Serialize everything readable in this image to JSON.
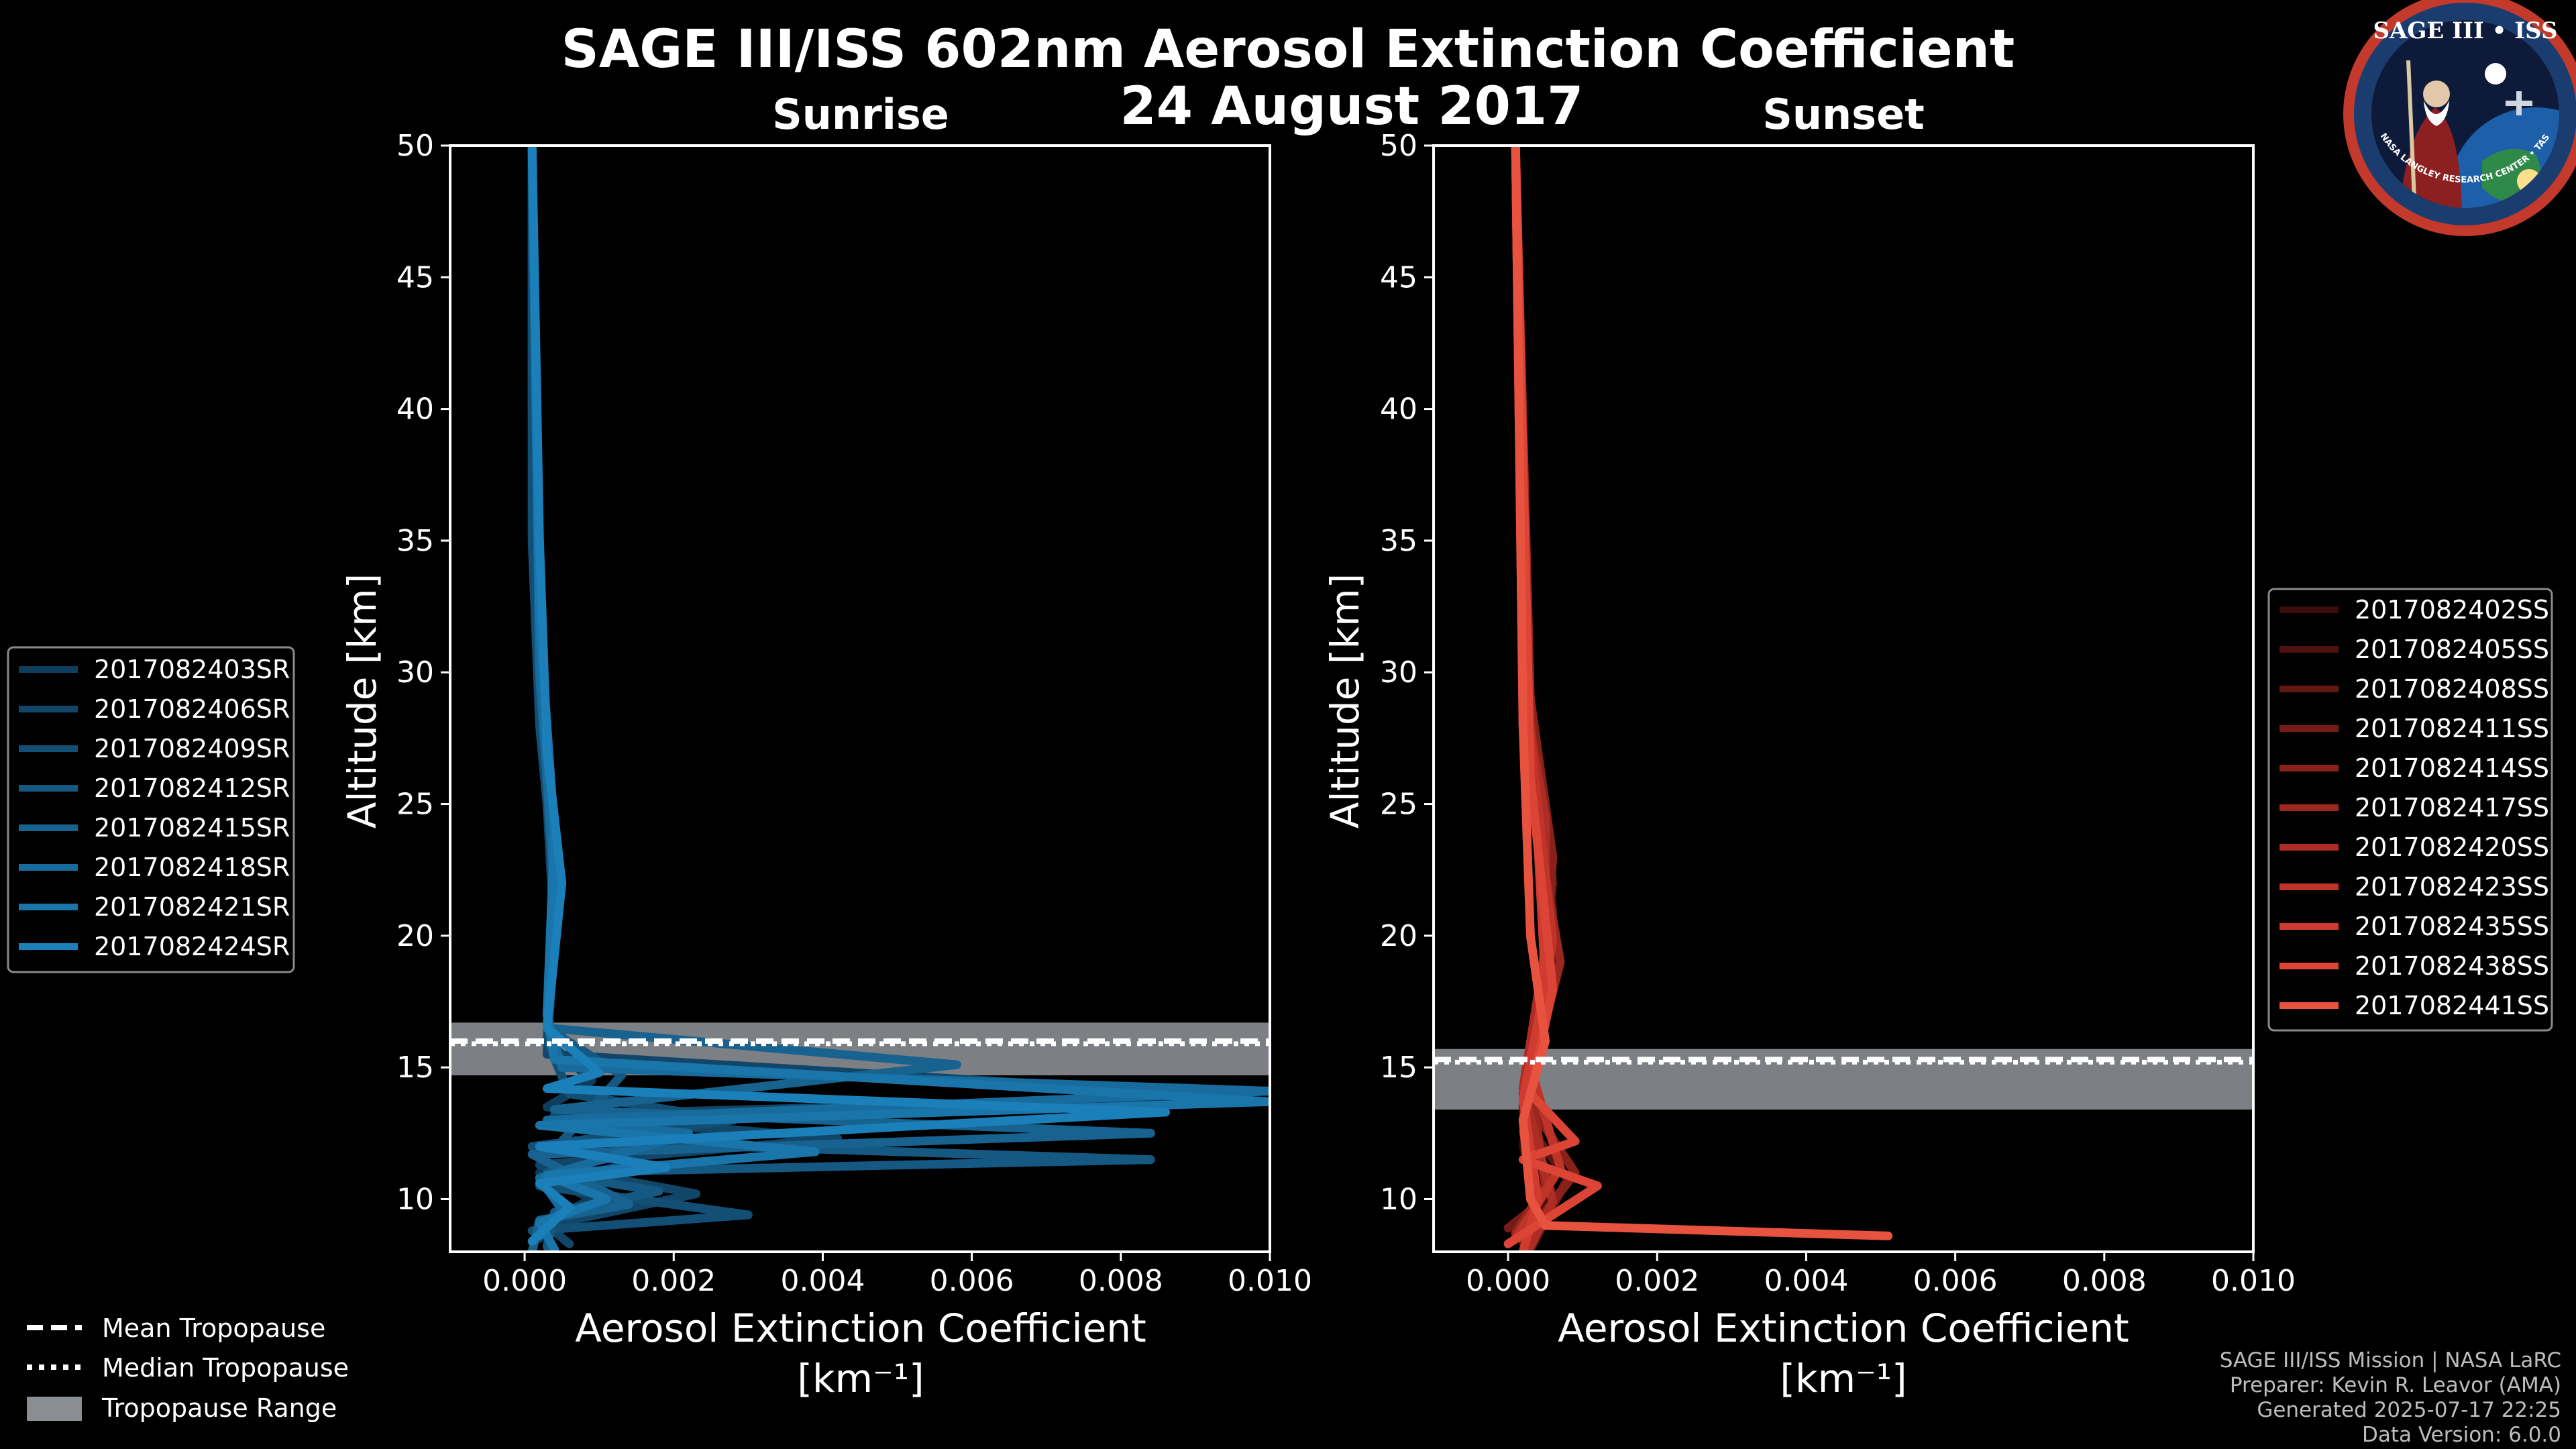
{
  "header": {
    "title_line1": "SAGE III/ISS 602nm Aerosol Extinction Coefficient",
    "title_line2": "24 August 2017"
  },
  "logo": {
    "text": "SAGE III • ISS",
    "ring_text": "BALL • NASA LANGLEY RESEARCH CENTER • TAS-I • ESA"
  },
  "credits": {
    "line1": "SAGE III/ISS Mission | NASA LaRC",
    "line2": "Preparer: Kevin R. Leavor (AMA)",
    "line3": "Generated 2025-07-17 22:25",
    "line4": "Data Version: 6.0.0"
  },
  "tropopause_legend": {
    "mean": "Mean Tropopause",
    "median": "Median Tropopause",
    "range": "Tropopause Range"
  },
  "colors": {
    "background": "#000000",
    "sunrise": "#1a7fc1",
    "sunset": "#e5574a",
    "tropopause_band": "#8a8d91"
  },
  "chart_data": [
    {
      "type": "line",
      "title": "Sunrise",
      "xlabel": "Aerosol Extinction Coefficient",
      "xlabel_units": "[km⁻¹]",
      "ylabel": "Altitude [km]",
      "xlim": [
        -0.001,
        0.01
      ],
      "ylim": [
        8,
        50
      ],
      "xticks": [
        0.0,
        0.002,
        0.004,
        0.006,
        0.008,
        0.01
      ],
      "xtick_labels": [
        "0.000",
        "0.002",
        "0.004",
        "0.006",
        "0.008",
        "0.010"
      ],
      "yticks": [
        10,
        15,
        20,
        25,
        30,
        35,
        40,
        45,
        50
      ],
      "tropopause": {
        "mean": 16.0,
        "median": 15.9,
        "range": [
          14.7,
          16.7
        ]
      },
      "legend": [
        "2017082403SR",
        "2017082406SR",
        "2017082409SR",
        "2017082412SR",
        "2017082415SR",
        "2017082418SR",
        "2017082421SR",
        "2017082424SR"
      ],
      "series": [
        {
          "name": "2017082403SR",
          "color": "#0e3d5e",
          "x": [
            0.0002,
            0.0004,
            0.0009,
            0.0002,
            0.0028,
            0.0003,
            0.0009,
            0.0003,
            0.0004,
            0.0003,
            0.0002,
            0.0002,
            0.0001,
            0.0001
          ],
          "y": [
            8.5,
            9.3,
            10,
            11,
            12.5,
            13.5,
            14.5,
            16,
            20,
            25,
            30,
            35,
            40,
            50
          ]
        },
        {
          "name": "2017082406SR",
          "color": "#114669",
          "x": [
            0.0006,
            0.0003,
            0.0023,
            0.0002,
            0.0042,
            0.0004,
            0.0097,
            0.0003,
            0.0004,
            0.0003,
            0.0002,
            0.0001,
            0.0001
          ],
          "y": [
            8.3,
            9.0,
            10.2,
            11.3,
            12.3,
            13.2,
            13.9,
            15.5,
            20,
            25,
            30,
            40,
            50
          ]
        },
        {
          "name": "2017082409SR",
          "color": "#134f75",
          "x": [
            0.0001,
            0.003,
            0.0002,
            0.0015,
            0.0001,
            0.0028,
            0.0006,
            0.0003,
            0.0004,
            0.0002,
            0.0001,
            0.0001
          ],
          "y": [
            8.8,
            9.4,
            10.5,
            11.4,
            12.0,
            13.0,
            14.0,
            16,
            22,
            28,
            35,
            50
          ]
        },
        {
          "name": "2017082412SR",
          "color": "#155882",
          "x": [
            0.0003,
            0.0004,
            0.0018,
            0.0003,
            0.0084,
            0.0005,
            0.0013,
            0.0003,
            0.0004,
            0.0003,
            0.0002,
            0.0001
          ],
          "y": [
            8.2,
            9.5,
            10.3,
            11.0,
            11.5,
            12.2,
            14.7,
            16.5,
            23,
            27,
            33,
            50
          ]
        },
        {
          "name": "2017082415SR",
          "color": "#17628f",
          "x": [
            0.0001,
            0.0002,
            0.0014,
            0.0001,
            0.0084,
            0.0004,
            0.0058,
            0.0003,
            0.0004,
            0.0003,
            0.0002,
            0.0001
          ],
          "y": [
            8.0,
            9.2,
            9.8,
            11.7,
            12.5,
            13.4,
            15.1,
            16.5,
            21,
            26,
            31,
            50
          ]
        },
        {
          "name": "2017082418SR",
          "color": "#186c9d",
          "x": [
            0.0002,
            0.0005,
            0.0002,
            0.0022,
            0.0003,
            0.01,
            0.0005,
            0.0003,
            0.0004,
            0.0002,
            0.0001
          ],
          "y": [
            8.6,
            9.6,
            10.8,
            12.5,
            13.0,
            14.1,
            15.0,
            17,
            22,
            30,
            50
          ]
        },
        {
          "name": "2017082421SR",
          "color": "#1a75ab",
          "x": [
            0.0004,
            0.0002,
            0.0011,
            0.0003,
            0.0039,
            0.0002,
            0.01,
            0.0004,
            0.0003,
            0.0004,
            0.0002,
            0.0001
          ],
          "y": [
            8.1,
            9.1,
            10.0,
            10.9,
            11.8,
            12.8,
            13.7,
            15.3,
            17,
            24,
            32,
            50
          ]
        },
        {
          "name": "2017082424SR",
          "color": "#1b7fba",
          "x": [
            0.0001,
            0.0006,
            0.0002,
            0.0019,
            0.0002,
            0.0086,
            0.0003,
            0.001,
            0.0003,
            0.0005,
            0.0003,
            0.0002,
            0.0001
          ],
          "y": [
            8.4,
            9.7,
            10.6,
            11.2,
            12.0,
            13.3,
            14.2,
            14.8,
            16.5,
            22,
            27,
            35,
            50
          ]
        }
      ]
    },
    {
      "type": "line",
      "title": "Sunset",
      "xlabel": "Aerosol Extinction Coefficient",
      "xlabel_units": "[km⁻¹]",
      "ylabel": "Altitude [km]",
      "xlim": [
        -0.001,
        0.01
      ],
      "ylim": [
        8,
        50
      ],
      "xticks": [
        0.0,
        0.002,
        0.004,
        0.006,
        0.008,
        0.01
      ],
      "xtick_labels": [
        "0.000",
        "0.002",
        "0.004",
        "0.006",
        "0.008",
        "0.010"
      ],
      "yticks": [
        10,
        15,
        20,
        25,
        30,
        35,
        40,
        45,
        50
      ],
      "tropopause": {
        "mean": 15.3,
        "median": 15.2,
        "range": [
          13.4,
          15.7
        ]
      },
      "legend": [
        "2017082402SS",
        "2017082405SS",
        "2017082408SS",
        "2017082411SS",
        "2017082414SS",
        "2017082417SS",
        "2017082420SS",
        "2017082423SS",
        "2017082435SS",
        "2017082438SS",
        "2017082441SS"
      ],
      "series": [
        {
          "name": "2017082402SS",
          "color": "#3a0d0a",
          "x": [
            0.0002,
            0.0005,
            0.0002,
            0.0004,
            0.0005,
            0.0003,
            0.0001
          ],
          "y": [
            8.3,
            9.5,
            12,
            16,
            20,
            28,
            50
          ]
        },
        {
          "name": "2017082405SS",
          "color": "#4d120e",
          "x": [
            0.0001,
            0.0006,
            0.0002,
            0.0005,
            0.0006,
            0.0003,
            0.0001
          ],
          "y": [
            8.6,
            10.2,
            12.5,
            17,
            21,
            29,
            50
          ]
        },
        {
          "name": "2017082408SS",
          "color": "#611712",
          "x": [
            0.0003,
            0.0008,
            0.0002,
            0.0004,
            0.0006,
            0.0002,
            0.0001
          ],
          "y": [
            8.1,
            10.8,
            13,
            17.5,
            22,
            30,
            50
          ]
        },
        {
          "name": "2017082411SS",
          "color": "#751c16",
          "x": [
            0.0,
            0.0004,
            0.0002,
            0.0006,
            0.0005,
            0.0003,
            0.0001
          ],
          "y": [
            8.9,
            9.8,
            13.5,
            18,
            22.5,
            27,
            50
          ]
        },
        {
          "name": "2017082414SS",
          "color": "#88211a",
          "x": [
            0.0002,
            0.0009,
            0.0002,
            0.0005,
            0.0006,
            0.0002,
            0.0001
          ],
          "y": [
            8.4,
            11.0,
            14,
            18.5,
            23,
            31,
            50
          ]
        },
        {
          "name": "2017082417SS",
          "color": "#9b271f",
          "x": [
            0.0001,
            0.0005,
            0.0003,
            0.0007,
            0.0004,
            0.0003,
            0.0001
          ],
          "y": [
            8.7,
            10.5,
            14.5,
            19,
            24,
            28.5,
            50
          ]
        },
        {
          "name": "2017082420SS",
          "color": "#ad2d24",
          "x": [
            0.0003,
            0.0006,
            0.0002,
            0.0005,
            0.0005,
            0.0002,
            0.0001
          ],
          "y": [
            8.2,
            9.9,
            14.2,
            19.5,
            24.5,
            29.5,
            50
          ]
        },
        {
          "name": "2017082423SS",
          "color": "#bf3429",
          "x": [
            0.0001,
            0.0007,
            0.0003,
            0.0006,
            0.0004,
            0.0002,
            0.0001
          ],
          "y": [
            8.5,
            11.2,
            15,
            19.8,
            25,
            30,
            50
          ]
        },
        {
          "name": "2017082435SS",
          "color": "#cf3b2f",
          "x": [
            0.0002,
            0.0004,
            0.0002,
            0.0005,
            0.0004,
            0.0002,
            0.0001
          ],
          "y": [
            8.0,
            10.0,
            13.8,
            18.2,
            23.5,
            28,
            50
          ]
        },
        {
          "name": "2017082438SS",
          "color": "#dc4435",
          "x": [
            0.0,
            0.0012,
            0.0002,
            0.0009,
            0.0003,
            0.0006,
            0.0003,
            0.0001
          ],
          "y": [
            8.3,
            10.5,
            11.5,
            12.2,
            14,
            18,
            26,
            50
          ]
        },
        {
          "name": "2017082441SS",
          "color": "#e8533f",
          "x": [
            0.0051,
            0.0005,
            0.0003,
            0.0002,
            0.0005,
            0.0003,
            0.0002,
            0.0001
          ],
          "y": [
            8.6,
            9.0,
            10,
            13,
            16,
            20,
            28,
            50
          ]
        }
      ]
    }
  ]
}
